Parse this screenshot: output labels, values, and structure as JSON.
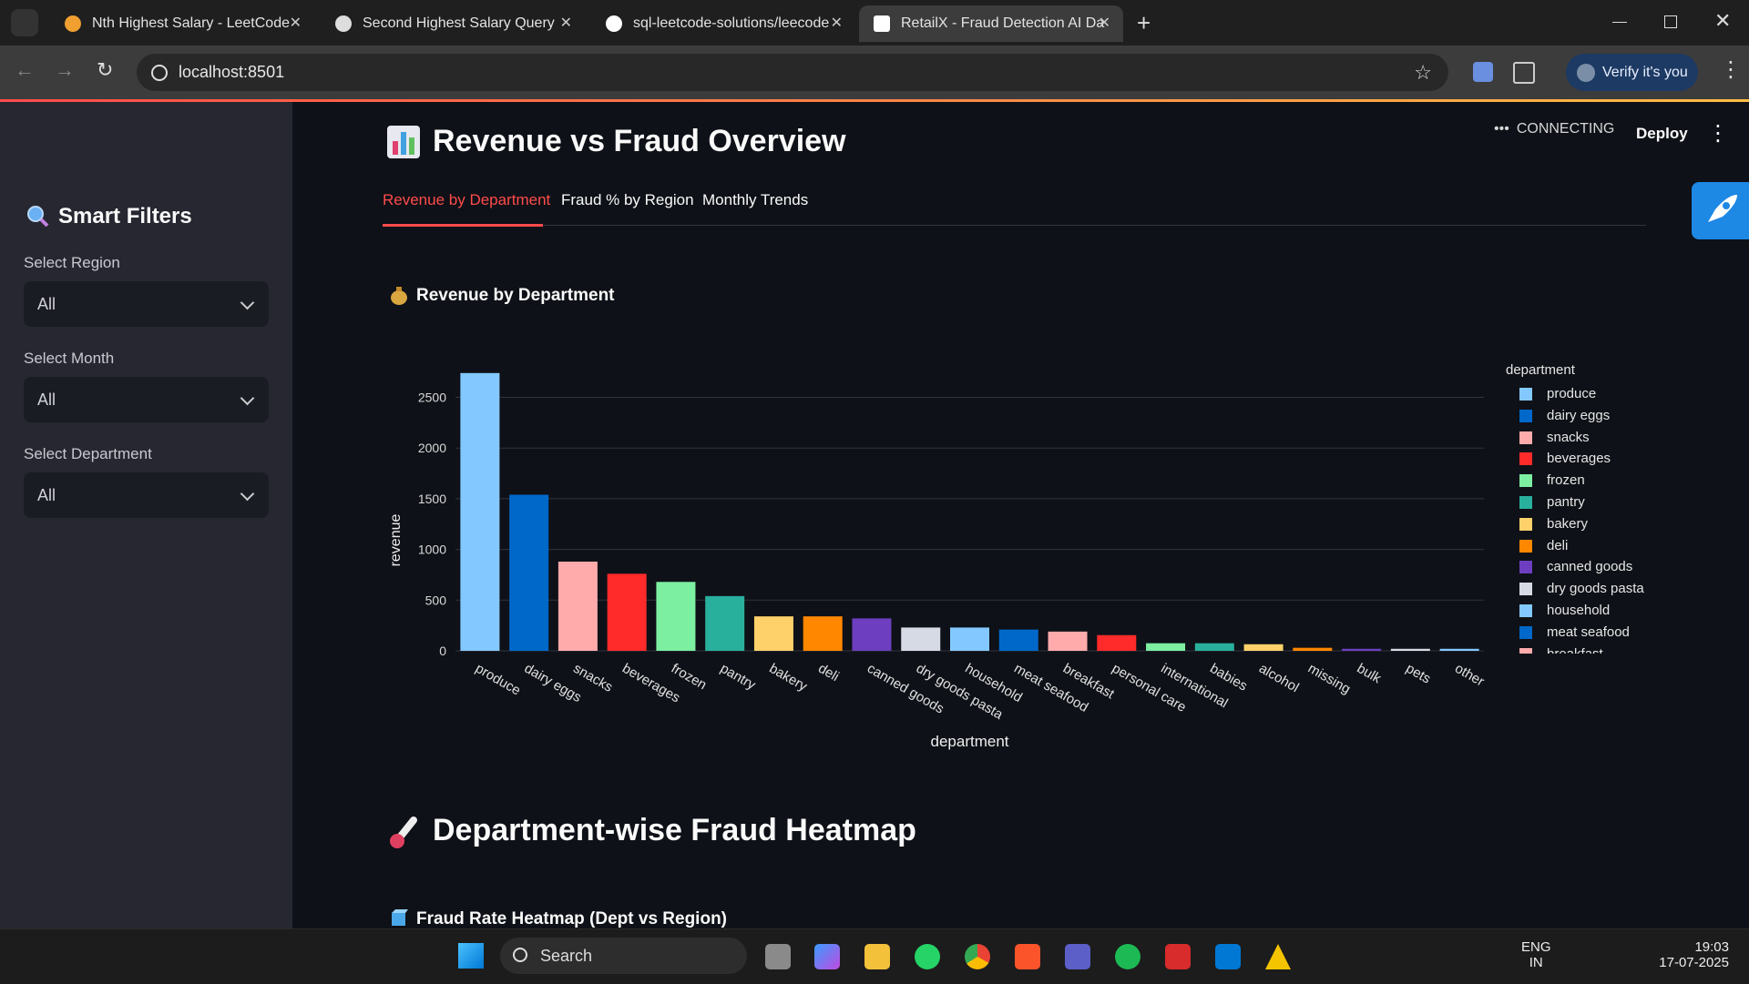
{
  "browser": {
    "tabs": [
      "Nth Highest Salary - LeetCode",
      "Second Highest Salary Query",
      "sql-leetcode-solutions/leecode",
      "RetailX - Fraud Detection AI Da"
    ],
    "url": "localhost:8501",
    "verify_button": "Verify it's you"
  },
  "app_header": {
    "status": "CONNECTING",
    "deploy": "Deploy"
  },
  "sidebar": {
    "title": "Smart Filters",
    "filters": [
      {
        "label": "Select Region",
        "value": "All"
      },
      {
        "label": "Select Month",
        "value": "All"
      },
      {
        "label": "Select Department",
        "value": "All"
      }
    ]
  },
  "main": {
    "title": "Revenue vs Fraud Overview",
    "tabs": [
      "Revenue by Department",
      "Fraud % by Region",
      "Monthly Trends"
    ],
    "subheader": "Revenue by Department",
    "section2_title": "Department-wise Fraud Heatmap",
    "section2_subheader": "Fraud Rate Heatmap (Dept vs Region)"
  },
  "chart_data": {
    "type": "bar",
    "x_label": "department",
    "y_label": "revenue",
    "legend_title": "department",
    "categories": [
      "produce",
      "dairy eggs",
      "snacks",
      "beverages",
      "frozen",
      "pantry",
      "bakery",
      "deli",
      "canned goods",
      "dry goods pasta",
      "household",
      "meat seafood",
      "breakfast",
      "personal care",
      "international",
      "babies",
      "alcohol",
      "missing",
      "bulk",
      "pets",
      "other"
    ],
    "values": [
      2740,
      1540,
      880,
      760,
      680,
      540,
      340,
      340,
      320,
      230,
      230,
      210,
      190,
      155,
      75,
      75,
      65,
      30,
      20,
      20,
      20
    ],
    "colors": [
      "#83c9ff",
      "#0068c9",
      "#ffabab",
      "#ff2b2b",
      "#7defa1",
      "#29b09d",
      "#ffd16a",
      "#ff8700",
      "#6d3fc0",
      "#d5dae5",
      "#83c9ff",
      "#0068c9",
      "#ffabab",
      "#ff2b2b",
      "#7defa1",
      "#29b09d",
      "#ffd16a",
      "#ff8700",
      "#6d3fc0",
      "#d5dae5",
      "#83c9ff"
    ],
    "ylim": [
      0,
      2900
    ],
    "yticks": [
      0,
      500,
      1000,
      1500,
      2000,
      2500
    ],
    "grid": true
  },
  "taskbar": {
    "search": "Search",
    "language": "ENG",
    "region": "IN",
    "time": "19:03",
    "date": "17-07-2025"
  }
}
